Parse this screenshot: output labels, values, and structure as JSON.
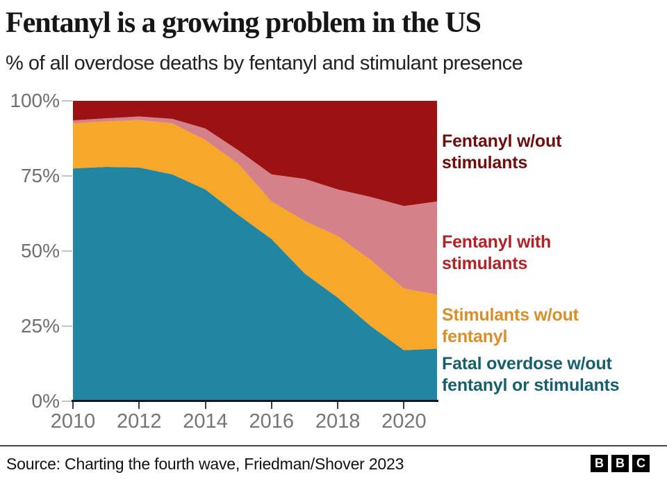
{
  "header": {
    "title": "Fentanyl is a growing problem in the US",
    "subtitle": "% of all overdose deaths by fentanyl and stimulant presence"
  },
  "chart_data": {
    "type": "area",
    "stacked": true,
    "title": "Fentanyl is a growing problem in the US",
    "subtitle": "% of all overdose deaths by fentanyl and stimulant presence",
    "x": [
      2010,
      2011,
      2012,
      2013,
      2014,
      2015,
      2016,
      2017,
      2018,
      2019,
      2020,
      2021
    ],
    "series": [
      {
        "name": "Fatal overdose w/out fentanyl or stimulants",
        "color": "#2186a2",
        "values": [
          77.5,
          78.0,
          77.8,
          75.5,
          70.5,
          62.0,
          54.0,
          42.5,
          34.5,
          25.0,
          17.0,
          17.5
        ]
      },
      {
        "name": "Stimulants w/out fentanyl",
        "color": "#f7a729",
        "values": [
          15.0,
          15.2,
          15.8,
          17.0,
          16.5,
          17.0,
          12.5,
          17.5,
          20.5,
          22.0,
          20.5,
          18.0
        ]
      },
      {
        "name": "Fentanyl with stimulants",
        "color": "#d5818a",
        "values": [
          1.0,
          1.0,
          1.2,
          1.5,
          3.8,
          4.5,
          9.0,
          14.0,
          15.5,
          21.0,
          27.5,
          31.0
        ]
      },
      {
        "name": "Fentanyl w/out stimulants",
        "color": "#9c1213",
        "values": [
          6.5,
          5.8,
          5.2,
          6.0,
          9.2,
          16.5,
          24.5,
          26.0,
          29.5,
          32.0,
          35.0,
          33.5
        ]
      }
    ],
    "ylim": [
      0,
      100
    ],
    "xlim": [
      2010,
      2021
    ],
    "y_tick_labels": [
      "100%",
      "75%",
      "50%",
      "25%",
      "0%"
    ],
    "x_tick_labels": [
      "2010",
      "2012",
      "2014",
      "2016",
      "2018",
      "2020"
    ],
    "grid": false,
    "legend_position": "right"
  },
  "legend": {
    "items": [
      {
        "lines": [
          "Fentanyl w/out",
          "stimulants"
        ],
        "color": "#6e0d0d"
      },
      {
        "lines": [
          "Fentanyl with",
          "stimulants"
        ],
        "color": "#b12227"
      },
      {
        "lines": [
          "Stimulants w/out",
          "fentanyl"
        ],
        "color": "#d78f2b"
      },
      {
        "lines": [
          "Fatal overdose w/out",
          "fentanyl or stimulants"
        ],
        "color": "#175f6b"
      }
    ]
  },
  "footer": {
    "source": "Source: Charting the fourth wave, Friedman/Shover 2023",
    "logo_letters": [
      "B",
      "B",
      "C"
    ]
  }
}
